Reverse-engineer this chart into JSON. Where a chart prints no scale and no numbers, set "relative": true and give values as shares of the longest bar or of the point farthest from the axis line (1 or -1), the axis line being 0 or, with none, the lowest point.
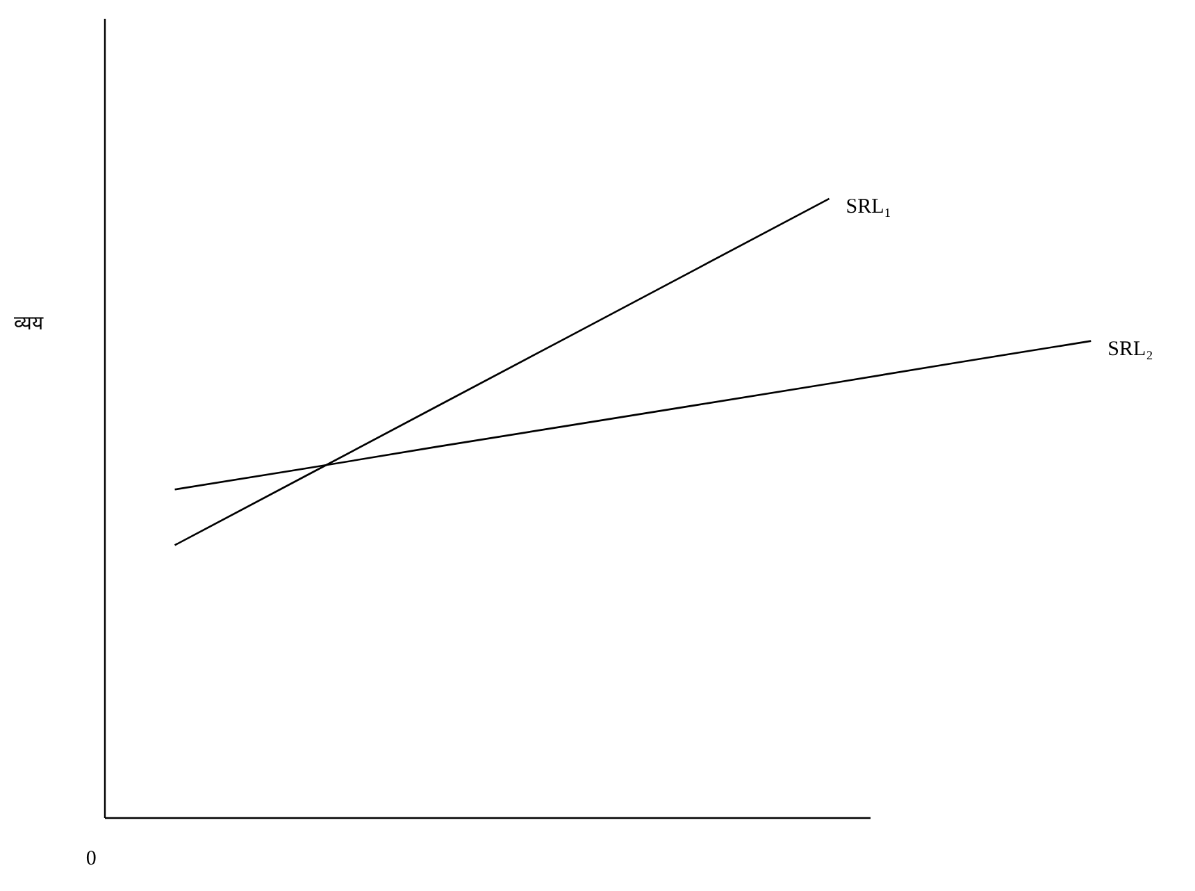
{
  "chart_data": {
    "type": "line",
    "relative": true,
    "ylabel": "व्यय",
    "categories": [
      null,
      null,
      null,
      null,
      null,
      null,
      null,
      null
    ],
    "series": [
      {
        "name": "SRL₁",
        "color": "#000000",
        "values": [
          0.44,
          0.552,
          0.664,
          0.776,
          0.888,
          1,
          null,
          null
        ]
      },
      {
        "name": "SRL₂",
        "color": "#000000",
        "values": [
          0.53,
          0.564,
          0.599,
          0.633,
          0.667,
          0.701,
          0.736,
          0.77
        ]
      }
    ],
    "annotations": [
      "0"
    ]
  }
}
